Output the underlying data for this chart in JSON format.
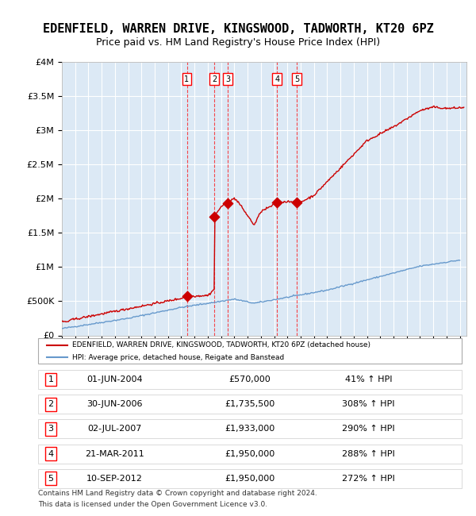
{
  "title": "EDENFIELD, WARREN DRIVE, KINGSWOOD, TADWORTH, KT20 6PZ",
  "subtitle": "Price paid vs. HM Land Registry's House Price Index (HPI)",
  "title_fontsize": 11,
  "subtitle_fontsize": 9,
  "background_color": "#dce9f5",
  "plot_bg_color": "#dce9f5",
  "line_color_red": "#cc0000",
  "line_color_blue": "#6699cc",
  "ylim": [
    0,
    4000000
  ],
  "yticks": [
    0,
    500000,
    1000000,
    1500000,
    2000000,
    2500000,
    3000000,
    3500000,
    4000000
  ],
  "ytick_labels": [
    "£0",
    "£500K",
    "£1M",
    "£1.5M",
    "£2M",
    "£2.5M",
    "£3M",
    "£3.5M",
    "£4M"
  ],
  "xlim_start": 1995.0,
  "xlim_end": 2025.5,
  "xticks": [
    1995,
    1996,
    1997,
    1998,
    1999,
    2000,
    2001,
    2002,
    2003,
    2004,
    2005,
    2006,
    2007,
    2008,
    2009,
    2010,
    2011,
    2012,
    2013,
    2014,
    2015,
    2016,
    2017,
    2018,
    2019,
    2020,
    2021,
    2022,
    2023,
    2024,
    2025
  ],
  "sale_markers": [
    {
      "num": 1,
      "date_x": 2004.42,
      "price": 570000,
      "label": "01-JUN-2004",
      "amount": "£570,000",
      "pct": "41% ↑ HPI"
    },
    {
      "num": 2,
      "date_x": 2006.49,
      "price": 1735500,
      "label": "30-JUN-2006",
      "amount": "£1,735,500",
      "pct": "308% ↑ HPI"
    },
    {
      "num": 3,
      "date_x": 2007.5,
      "price": 1933000,
      "label": "02-JUL-2007",
      "amount": "£1,933,000",
      "pct": "290% ↑ HPI"
    },
    {
      "num": 4,
      "date_x": 2011.22,
      "price": 1950000,
      "label": "21-MAR-2011",
      "amount": "£1,950,000",
      "pct": "288% ↑ HPI"
    },
    {
      "num": 5,
      "date_x": 2012.7,
      "price": 1950000,
      "label": "10-SEP-2012",
      "amount": "£1,950,000",
      "pct": "272% ↑ HPI"
    }
  ],
  "legend_entries": [
    "EDENFIELD, WARREN DRIVE, KINGSWOOD, TADWORTH, KT20 6PZ (detached house)",
    "HPI: Average price, detached house, Reigate and Banstead"
  ],
  "footer_lines": [
    "Contains HM Land Registry data © Crown copyright and database right 2024.",
    "This data is licensed under the Open Government Licence v3.0."
  ],
  "table_rows": [
    [
      "1",
      "01-JUN-2004",
      "£570,000",
      "41% ↑ HPI"
    ],
    [
      "2",
      "30-JUN-2006",
      "£1,735,500",
      "308% ↑ HPI"
    ],
    [
      "3",
      "02-JUL-2007",
      "£1,933,000",
      "290% ↑ HPI"
    ],
    [
      "4",
      "21-MAR-2011",
      "£1,950,000",
      "288% ↑ HPI"
    ],
    [
      "5",
      "10-SEP-2012",
      "£1,950,000",
      "272% ↑ HPI"
    ]
  ]
}
